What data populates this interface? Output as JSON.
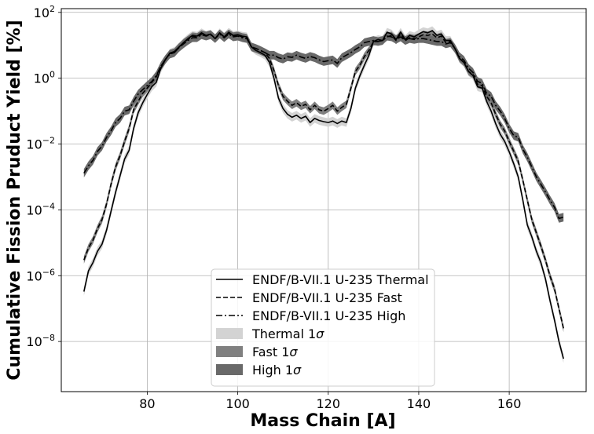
{
  "chart_data": {
    "type": "line",
    "title": "",
    "xlabel": "Mass Chain [A]",
    "ylabel": "Cumulative Fission Pruduct Yield [%]",
    "xlim": [
      61,
      177
    ],
    "ylim": [
      3e-10,
      130
    ],
    "yscale": "log",
    "grid": true,
    "xticks": [
      80,
      100,
      120,
      140,
      160
    ],
    "yticks": [
      {
        "value": 1e-08,
        "base": "10",
        "exp": "−8"
      },
      {
        "value": 1e-06,
        "base": "10",
        "exp": "−6"
      },
      {
        "value": 0.0001,
        "base": "10",
        "exp": "−4"
      },
      {
        "value": 0.01,
        "base": "10",
        "exp": "−2"
      },
      {
        "value": 1,
        "base": "10",
        "exp": "0"
      },
      {
        "value": 100,
        "base": "10",
        "exp": "2"
      }
    ],
    "legend_position": "lower-center",
    "series": [
      {
        "name": "ENDF/B-VII.1 U-235 Thermal",
        "style": "solid",
        "color": "#000000",
        "x": [
          66,
          67,
          68,
          69,
          70,
          71,
          72,
          73,
          74,
          75,
          76,
          77,
          78,
          79,
          80,
          81,
          82,
          83,
          84,
          85,
          86,
          87,
          88,
          89,
          90,
          91,
          92,
          93,
          94,
          95,
          96,
          97,
          98,
          99,
          100,
          101,
          102,
          103,
          104,
          105,
          106,
          107,
          108,
          109,
          110,
          111,
          112,
          113,
          114,
          115,
          116,
          117,
          118,
          119,
          120,
          121,
          122,
          123,
          124,
          125,
          126,
          127,
          128,
          129,
          130,
          131,
          132,
          133,
          134,
          135,
          136,
          137,
          138,
          139,
          140,
          141,
          142,
          143,
          144,
          145,
          146,
          147,
          148,
          149,
          150,
          151,
          152,
          153,
          154,
          155,
          156,
          157,
          158,
          159,
          160,
          161,
          162,
          163,
          164,
          165,
          166,
          167,
          168,
          169,
          170,
          171,
          172
        ],
        "y": [
          3.3e-07,
          1.4e-06,
          2.5e-06,
          5.5e-06,
          9e-06,
          2.4e-05,
          9e-05,
          0.00034,
          0.0011,
          0.0035,
          0.0065,
          0.03,
          0.09,
          0.18,
          0.32,
          0.55,
          0.75,
          2,
          3.6,
          5.8,
          6.5,
          8.8,
          12,
          16,
          20,
          19,
          24,
          20,
          22,
          16,
          24,
          18,
          25,
          20,
          21,
          19,
          18,
          9,
          7,
          6,
          5,
          3,
          1,
          0.25,
          0.12,
          0.08,
          0.065,
          0.075,
          0.06,
          0.07,
          0.045,
          0.06,
          0.052,
          0.048,
          0.045,
          0.05,
          0.042,
          0.05,
          0.045,
          0.12,
          0.5,
          1.2,
          2.5,
          5,
          13,
          15,
          14,
          25,
          22,
          15,
          25,
          15,
          20,
          18,
          22,
          26,
          24,
          28,
          20,
          22,
          14,
          14,
          8,
          4,
          3,
          1.6,
          1.2,
          0.55,
          0.5,
          0.2,
          0.1,
          0.042,
          0.02,
          0.012,
          0.0058,
          0.0025,
          0.001,
          0.0002,
          3.5e-05,
          1.5e-05,
          5.5e-06,
          2.5e-06,
          8e-07,
          1.8e-07,
          4.5e-08,
          1e-08,
          3e-09
        ]
      },
      {
        "name": "ENDF/B-VII.1 U-235 Fast",
        "style": "dashed",
        "color": "#000000",
        "x": [
          66,
          67,
          68,
          69,
          70,
          71,
          72,
          73,
          74,
          75,
          76,
          77,
          78,
          79,
          80,
          81,
          82,
          83,
          84,
          85,
          86,
          87,
          88,
          89,
          90,
          91,
          92,
          93,
          94,
          95,
          96,
          97,
          98,
          99,
          100,
          101,
          102,
          103,
          104,
          105,
          106,
          107,
          108,
          109,
          110,
          111,
          112,
          113,
          114,
          115,
          116,
          117,
          118,
          119,
          120,
          121,
          122,
          123,
          124,
          125,
          126,
          127,
          128,
          129,
          130,
          131,
          132,
          133,
          134,
          135,
          136,
          137,
          138,
          139,
          140,
          141,
          142,
          143,
          144,
          145,
          146,
          147,
          148,
          149,
          150,
          151,
          152,
          153,
          154,
          155,
          156,
          157,
          158,
          159,
          160,
          161,
          162,
          163,
          164,
          165,
          166,
          167,
          168,
          169,
          170,
          171,
          172
        ],
        "y": [
          3e-06,
          7e-06,
          1.2e-05,
          2.7e-05,
          5e-05,
          0.00015,
          0.0006,
          0.002,
          0.0045,
          0.012,
          0.03,
          0.11,
          0.2,
          0.35,
          0.5,
          0.75,
          1.1,
          2.3,
          3.7,
          5.6,
          6,
          8.5,
          12,
          15,
          19,
          18,
          22,
          20,
          22,
          16,
          23,
          18,
          23,
          19,
          20,
          18,
          17,
          9,
          8,
          7,
          6,
          4,
          1.7,
          0.6,
          0.28,
          0.2,
          0.15,
          0.18,
          0.14,
          0.16,
          0.11,
          0.15,
          0.11,
          0.1,
          0.12,
          0.15,
          0.1,
          0.13,
          0.16,
          0.5,
          1.6,
          2.5,
          4.6,
          7,
          13,
          13,
          14,
          18,
          20,
          14,
          22,
          14,
          17,
          16,
          18,
          21,
          20,
          22,
          17,
          19,
          12,
          13,
          8,
          4,
          3,
          1.6,
          1.3,
          0.65,
          0.6,
          0.28,
          0.18,
          0.08,
          0.04,
          0.025,
          0.012,
          0.006,
          0.003,
          0.0008,
          0.0002,
          5e-05,
          2e-05,
          8e-06,
          3e-06,
          1e-06,
          4e-07,
          1e-07,
          2.5e-08
        ]
      },
      {
        "name": "ENDF/B-VII.1 U-235 High",
        "style": "dashdot",
        "color": "#000000",
        "x": [
          66,
          67,
          68,
          69,
          70,
          71,
          72,
          73,
          74,
          75,
          76,
          77,
          78,
          79,
          80,
          81,
          82,
          83,
          84,
          85,
          86,
          87,
          88,
          89,
          90,
          91,
          92,
          93,
          94,
          95,
          96,
          97,
          98,
          99,
          100,
          101,
          102,
          103,
          104,
          105,
          106,
          107,
          108,
          109,
          110,
          111,
          112,
          113,
          114,
          115,
          116,
          117,
          118,
          119,
          120,
          121,
          122,
          123,
          124,
          125,
          126,
          127,
          128,
          129,
          130,
          131,
          132,
          133,
          134,
          135,
          136,
          137,
          138,
          139,
          140,
          141,
          142,
          143,
          144,
          145,
          146,
          147,
          148,
          149,
          150,
          151,
          152,
          153,
          154,
          155,
          156,
          157,
          158,
          159,
          160,
          161,
          162,
          163,
          164,
          165,
          166,
          167,
          168,
          169,
          170,
          171,
          172
        ],
        "y": [
          0.0013,
          0.0022,
          0.0032,
          0.006,
          0.0085,
          0.016,
          0.025,
          0.045,
          0.06,
          0.1,
          0.11,
          0.2,
          0.33,
          0.45,
          0.6,
          0.8,
          1.2,
          2.3,
          3.7,
          5.4,
          6,
          8.5,
          11,
          14,
          17,
          17,
          21,
          19,
          21,
          16,
          22,
          17,
          22,
          18,
          19,
          17,
          16,
          9,
          8,
          7,
          6,
          5,
          5,
          4.2,
          3.8,
          4.5,
          4.3,
          5,
          4.4,
          4,
          4.6,
          4.2,
          3.6,
          3.2,
          3.4,
          3.6,
          2.8,
          4.2,
          5,
          6,
          7.5,
          9,
          12,
          13,
          14,
          13,
          14,
          19,
          18,
          15,
          18,
          14,
          16,
          15,
          16,
          16,
          15,
          14,
          13,
          13,
          11,
          12,
          8,
          4.5,
          3.5,
          2,
          1.5,
          0.8,
          0.7,
          0.35,
          0.28,
          0.15,
          0.1,
          0.06,
          0.03,
          0.018,
          0.016,
          0.007,
          0.004,
          0.002,
          0.001,
          0.0006,
          0.00035,
          0.0002,
          0.00012,
          5.5e-05,
          6e-05
        ]
      }
    ],
    "bands": [
      {
        "name": "Thermal 1σ",
        "label_base": "Thermal 1",
        "label_sym": "σ",
        "of": "ENDF/B-VII.1 U-235 Thermal",
        "rel": 0.35,
        "color": "#d3d3d3"
      },
      {
        "name": "Fast 1σ",
        "label_base": "Fast 1",
        "label_sym": "σ",
        "of": "ENDF/B-VII.1 U-235 Fast",
        "rel": 0.3,
        "color": "#808080"
      },
      {
        "name": "High 1σ",
        "label_base": "High 1",
        "label_sym": "σ",
        "of": "ENDF/B-VII.1 U-235 High",
        "rel": 0.35,
        "color": "#696969"
      }
    ]
  }
}
